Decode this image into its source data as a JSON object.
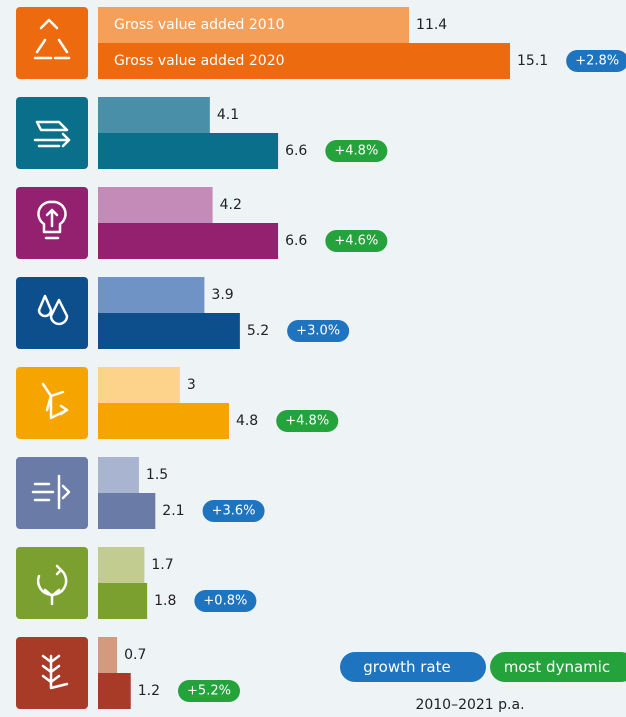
{
  "chart_data": {
    "type": "bar",
    "orientation": "horizontal",
    "series": [
      {
        "name": "Gross value added 2010",
        "colors": [
          "#f5a05a",
          "#4a8fa8",
          "#c48ab8",
          "#6f93c4",
          "#fdd28a",
          "#a8b4d0",
          "#c2cc90",
          "#d49a80"
        ],
        "values": [
          11.4,
          4.1,
          4.2,
          3.9,
          3.0,
          1.5,
          1.7,
          0.7
        ]
      },
      {
        "name": "Gross value added 2020",
        "colors": [
          "#ee6a0e",
          "#0a6f8a",
          "#932170",
          "#0d4f8c",
          "#f5a400",
          "#6a7ba8",
          "#7ca030",
          "#a83a28"
        ],
        "values": [
          15.1,
          6.6,
          6.6,
          5.2,
          4.8,
          2.1,
          1.8,
          1.2
        ]
      }
    ],
    "growth": {
      "values": [
        2.8,
        4.8,
        4.6,
        3.0,
        4.8,
        3.6,
        0.8,
        5.2
      ],
      "value_labels": [
        "+2.8%",
        "+4.8%",
        "+4.6%",
        "+3.0%",
        "+4.8%",
        "+3.6%",
        "+0.8%",
        "+5.2%"
      ],
      "legend_index": [
        0,
        1,
        1,
        0,
        1,
        0,
        0,
        1
      ],
      "legend": [
        {
          "name": "growth rate",
          "color": "#1f74c0"
        },
        {
          "name": "most dynamic",
          "color": "#24a23c"
        }
      ],
      "note": "2010–2021 p.a."
    }
  }
}
